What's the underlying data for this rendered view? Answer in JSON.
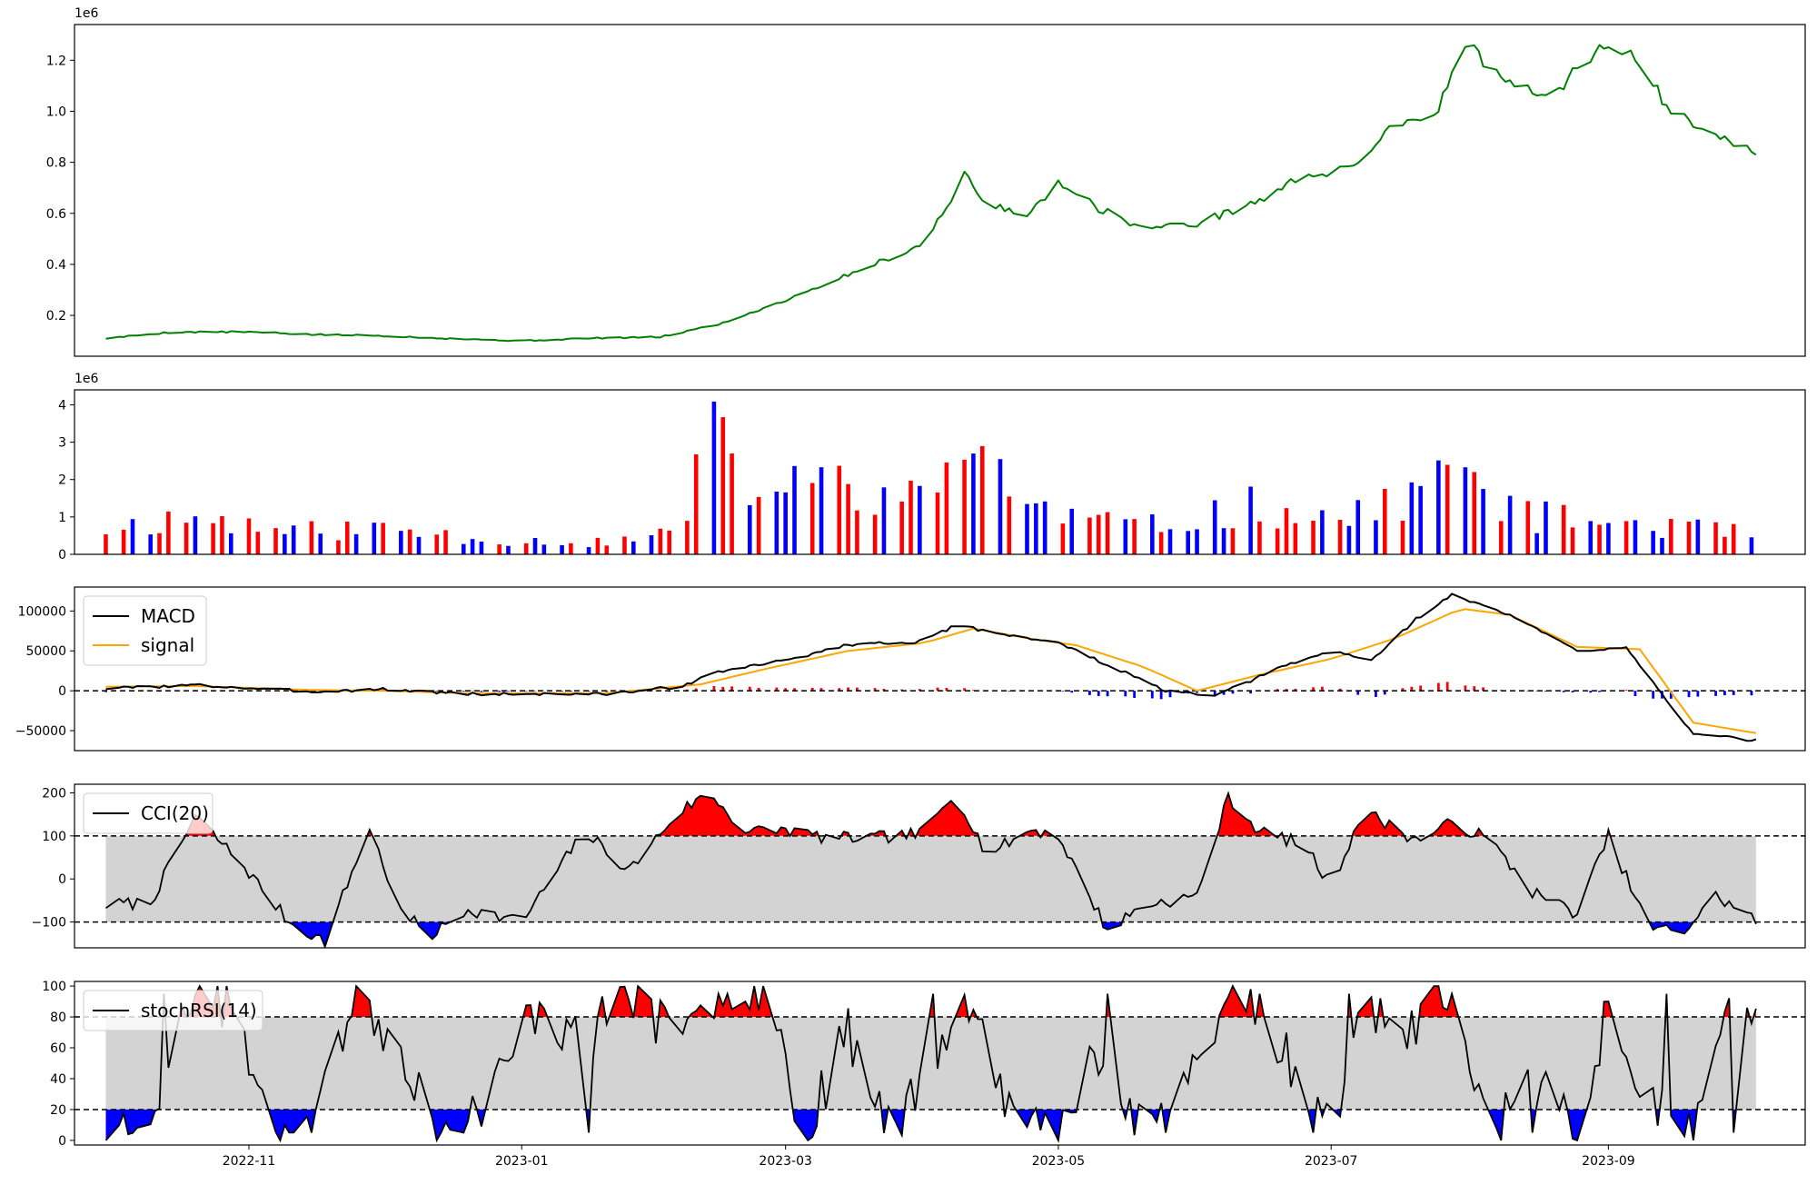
{
  "chart_data": [
    {
      "panel": "price",
      "type": "line",
      "offset_label": "1e6",
      "yticks": [
        "0.2",
        "0.4",
        "0.6",
        "0.8",
        "1.0",
        "1.2"
      ],
      "ytick_values": [
        0.2,
        0.4,
        0.6,
        0.8,
        1.0,
        1.2
      ],
      "ylim": [
        0.04,
        1.34
      ],
      "color": "#008000",
      "x": [
        "2022-09-30",
        "2022-10-15",
        "2022-11-01",
        "2022-11-15",
        "2022-12-01",
        "2022-12-15",
        "2023-01-01",
        "2023-01-15",
        "2023-02-01",
        "2023-02-15",
        "2023-03-01",
        "2023-03-15",
        "2023-04-01",
        "2023-04-10",
        "2023-04-15",
        "2023-04-25",
        "2023-05-01",
        "2023-05-10",
        "2023-05-20",
        "2023-06-01",
        "2023-06-15",
        "2023-06-25",
        "2023-07-05",
        "2023-07-15",
        "2023-07-25",
        "2023-07-30",
        "2023-08-10",
        "2023-08-20",
        "2023-08-27",
        "2023-09-05",
        "2023-09-15",
        "2023-09-25",
        "2023-10-04"
      ],
      "y": [
        0.11,
        0.135,
        0.135,
        0.125,
        0.12,
        0.11,
        0.1,
        0.11,
        0.115,
        0.17,
        0.26,
        0.36,
        0.48,
        0.75,
        0.63,
        0.6,
        0.73,
        0.62,
        0.54,
        0.56,
        0.65,
        0.75,
        0.77,
        0.95,
        1.0,
        1.28,
        1.1,
        1.05,
        1.22,
        1.25,
        1.0,
        0.92,
        0.83
      ]
    },
    {
      "panel": "volume",
      "type": "bar",
      "offset_label": "1e6",
      "yticks": [
        "0",
        "1",
        "2",
        "3",
        "4"
      ],
      "ytick_values": [
        0,
        1,
        2,
        3,
        4
      ],
      "ylim": [
        0,
        4.4
      ],
      "colors": {
        "up": "#ff0000",
        "down": "#0000ff",
        "flat": "#000000"
      },
      "x_range": [
        "2022-09-30",
        "2023-10-04"
      ],
      "control_points": {
        "x": [
          "2022-09-30",
          "2022-10-20",
          "2022-11-10",
          "2022-12-01",
          "2022-12-25",
          "2023-01-20",
          "2023-02-05",
          "2023-02-12",
          "2023-02-25",
          "2023-03-15",
          "2023-04-01",
          "2023-04-12",
          "2023-04-25",
          "2023-05-20",
          "2023-06-15",
          "2023-07-05",
          "2023-07-28",
          "2023-08-15",
          "2023-09-10",
          "2023-10-04"
        ],
        "y": [
          0.7,
          1.0,
          0.6,
          0.7,
          0.4,
          0.3,
          0.6,
          3.0,
          1.6,
          2.0,
          1.3,
          3.2,
          1.2,
          0.7,
          1.3,
          0.9,
          2.2,
          1.0,
          0.8,
          0.5
        ]
      },
      "seed": 11
    },
    {
      "panel": "macd",
      "type": "line",
      "yticks": [
        "−50000",
        "0",
        "50000",
        "100000"
      ],
      "ytick_values": [
        -50000,
        0,
        50000,
        100000
      ],
      "ylim": [
        -75000,
        130000
      ],
      "zero_line": 0,
      "legend": {
        "entries": [
          "MACD",
          "signal"
        ],
        "placement": "top-left"
      },
      "series": [
        {
          "name": "MACD",
          "color": "#000000",
          "x": [
            "2022-09-30",
            "2022-10-20",
            "2022-11-15",
            "2022-12-01",
            "2022-12-20",
            "2023-01-20",
            "2023-02-05",
            "2023-02-15",
            "2023-03-01",
            "2023-03-15",
            "2023-04-01",
            "2023-04-08",
            "2023-04-20",
            "2023-05-01",
            "2023-05-15",
            "2023-05-25",
            "2023-06-05",
            "2023-06-20",
            "2023-07-01",
            "2023-07-10",
            "2023-07-20",
            "2023-07-28",
            "2023-08-10",
            "2023-08-25",
            "2023-09-05",
            "2023-09-20",
            "2023-10-04"
          ],
          "y": [
            3000,
            7000,
            -1000,
            2000,
            -4000,
            -4000,
            5000,
            25000,
            38000,
            58000,
            62000,
            82000,
            70000,
            60000,
            25000,
            0,
            -7000,
            30000,
            50000,
            38000,
            90000,
            120000,
            95000,
            50000,
            55000,
            -55000,
            -62000
          ]
        },
        {
          "name": "signal",
          "color": "#ffa500",
          "x": [
            "2022-09-30",
            "2022-10-20",
            "2022-11-15",
            "2022-12-01",
            "2022-12-20",
            "2023-01-20",
            "2023-02-10",
            "2023-02-25",
            "2023-03-15",
            "2023-04-01",
            "2023-04-12",
            "2023-04-25",
            "2023-05-05",
            "2023-05-20",
            "2023-06-01",
            "2023-06-15",
            "2023-07-01",
            "2023-07-15",
            "2023-07-30",
            "2023-08-10",
            "2023-08-25",
            "2023-09-08",
            "2023-09-20",
            "2023-10-04"
          ],
          "y": [
            5000,
            6000,
            1000,
            0,
            -3000,
            -3000,
            8000,
            28000,
            50000,
            60000,
            78000,
            65000,
            57000,
            30000,
            0,
            20000,
            40000,
            65000,
            103000,
            95000,
            55000,
            52000,
            -40000,
            -53000
          ]
        }
      ],
      "histogram": {
        "up_color": "#ff0000",
        "down_color": "#0000ff"
      }
    },
    {
      "panel": "cci",
      "type": "area",
      "yticks": [
        "−100",
        "0",
        "100",
        "200"
      ],
      "ytick_values": [
        -100,
        0,
        100,
        200
      ],
      "ylim": [
        -160,
        220
      ],
      "bands": [
        -100,
        100
      ],
      "legend": {
        "entries": [
          "CCI(20)"
        ],
        "placement": "top-left"
      },
      "colors": {
        "line": "#000000",
        "band": "#d3d3d3",
        "above": "#ff0000",
        "below": "#0000ff"
      },
      "x": [
        "2022-09-30",
        "2022-10-10",
        "2022-10-20",
        "2022-10-30",
        "2022-11-10",
        "2022-11-18",
        "2022-11-28",
        "2022-12-05",
        "2022-12-12",
        "2022-12-20",
        "2023-01-01",
        "2023-01-15",
        "2023-01-25",
        "2023-02-05",
        "2023-02-12",
        "2023-02-20",
        "2023-03-01",
        "2023-03-10",
        "2023-03-20",
        "2023-04-01",
        "2023-04-08",
        "2023-04-15",
        "2023-04-25",
        "2023-05-01",
        "2023-05-12",
        "2023-05-20",
        "2023-06-01",
        "2023-06-08",
        "2023-06-15",
        "2023-06-25",
        "2023-07-01",
        "2023-07-08",
        "2023-07-20",
        "2023-07-28",
        "2023-08-05",
        "2023-08-15",
        "2023-08-25",
        "2023-09-01",
        "2023-09-10",
        "2023-09-18",
        "2023-09-25",
        "2023-10-04"
      ],
      "y": [
        -60,
        -55,
        145,
        40,
        -100,
        -145,
        120,
        -80,
        -130,
        -70,
        -100,
        110,
        20,
        155,
        200,
        110,
        115,
        95,
        95,
        105,
        205,
        55,
        115,
        100,
        -120,
        -60,
        -40,
        190,
        110,
        80,
        -20,
        160,
        90,
        130,
        95,
        -30,
        -80,
        100,
        -115,
        -120,
        -40,
        -95
      ]
    },
    {
      "panel": "stochrsi",
      "type": "area",
      "yticks": [
        "0",
        "20",
        "40",
        "60",
        "80",
        "100"
      ],
      "ytick_values": [
        0,
        20,
        40,
        60,
        80,
        100
      ],
      "ylim": [
        -3,
        103
      ],
      "bands": [
        20,
        80
      ],
      "legend": {
        "entries": [
          "stochRSI(14)"
        ],
        "placement": "top-left"
      },
      "colors": {
        "line": "#000000",
        "band": "#d3d3d3",
        "above": "#ff0000",
        "below": "#0000ff"
      },
      "x_range": [
        "2022-09-30",
        "2023-10-04"
      ],
      "control_points": {
        "x": [
          "2022-09-30",
          "2022-10-12",
          "2022-10-20",
          "2022-10-30",
          "2022-11-05",
          "2022-11-15",
          "2022-11-25",
          "2022-12-05",
          "2022-12-15",
          "2022-12-25",
          "2023-01-05",
          "2023-01-15",
          "2023-01-25",
          "2023-02-05",
          "2023-02-15",
          "2023-02-25",
          "2023-03-05",
          "2023-03-15",
          "2023-03-25",
          "2023-04-05",
          "2023-04-12",
          "2023-04-20",
          "2023-05-01",
          "2023-05-10",
          "2023-05-20",
          "2023-06-01",
          "2023-06-10",
          "2023-06-20",
          "2023-07-01",
          "2023-07-08",
          "2023-07-18",
          "2023-07-28",
          "2023-08-05",
          "2023-08-15",
          "2023-08-25",
          "2023-09-01",
          "2023-09-10",
          "2023-09-20",
          "2023-09-27",
          "2023-10-04"
        ],
        "y": [
          0,
          30,
          100,
          80,
          5,
          20,
          95,
          60,
          0,
          30,
          90,
          60,
          100,
          60,
          100,
          100,
          5,
          70,
          10,
          60,
          100,
          20,
          0,
          60,
          10,
          50,
          100,
          60,
          5,
          90,
          70,
          100,
          5,
          40,
          5,
          90,
          30,
          0,
          100,
          80
        ]
      },
      "seed": 23
    }
  ],
  "xaxis": {
    "range": [
      "2022-09-23",
      "2023-10-15"
    ],
    "ticks": [
      "2022-11",
      "2023-01",
      "2023-03",
      "2023-05",
      "2023-07",
      "2023-09"
    ],
    "tick_dates": [
      "2022-11-01",
      "2023-01-01",
      "2023-03-01",
      "2023-05-01",
      "2023-07-01",
      "2023-09-01"
    ]
  }
}
